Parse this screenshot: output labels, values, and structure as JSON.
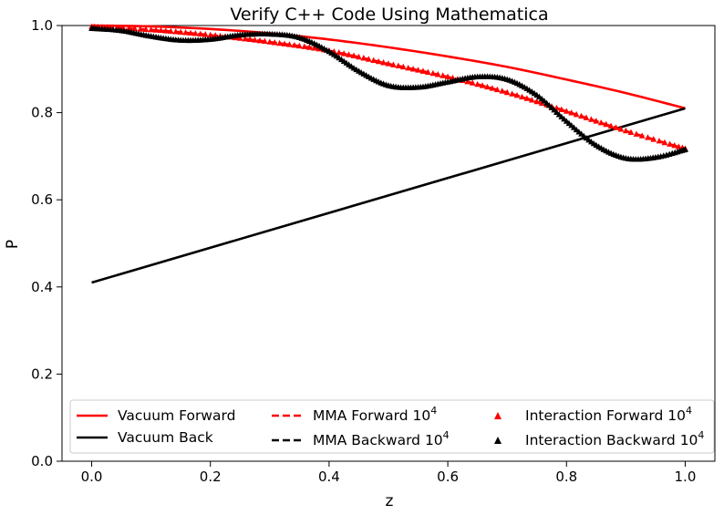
{
  "chart_data": {
    "type": "line",
    "title": "Verify C++ Code Using Mathematica",
    "xlabel": "z",
    "ylabel": "P",
    "xlim": [
      -0.05,
      1.05
    ],
    "ylim": [
      0.0,
      1.0
    ],
    "xticks": [
      0.0,
      0.2,
      0.4,
      0.6,
      0.8,
      1.0
    ],
    "xtick_labels": [
      "0.0",
      "0.2",
      "0.4",
      "0.6",
      "0.8",
      "1.0"
    ],
    "yticks": [
      0.0,
      0.2,
      0.4,
      0.6,
      0.8,
      1.0
    ],
    "ytick_labels": [
      "0.0",
      "0.2",
      "0.4",
      "0.6",
      "0.8",
      "1.0"
    ],
    "grid": false,
    "legend_placement": "bottom",
    "legend_columns": 3,
    "series": [
      {
        "name": "Vacuum Forward",
        "color": "#ff0000",
        "style": "solid",
        "x": [
          0.0,
          0.1,
          0.2,
          0.3,
          0.4,
          0.5,
          0.6,
          0.7,
          0.8,
          0.9,
          1.0
        ],
        "y": [
          1.0,
          0.998,
          0.992,
          0.982,
          0.968,
          0.95,
          0.929,
          0.905,
          0.876,
          0.845,
          0.81
        ]
      },
      {
        "name": "Vacuum Back",
        "color": "#000000",
        "style": "solid",
        "x": [
          0.0,
          1.0
        ],
        "y": [
          0.41,
          0.81
        ]
      },
      {
        "name": "MMA Forward 10^4",
        "label_main": "MMA Forward 10",
        "label_exp": "4",
        "color": "#ff0000",
        "style": "dashed",
        "x": [
          0.0,
          0.1,
          0.2,
          0.3,
          0.4,
          0.5,
          0.6,
          0.7,
          0.8,
          0.9,
          1.0
        ],
        "y": [
          0.997,
          0.99,
          0.978,
          0.962,
          0.942,
          0.912,
          0.882,
          0.846,
          0.803,
          0.758,
          0.717
        ]
      },
      {
        "name": "MMA Backward 10^4",
        "label_main": "MMA Backward 10",
        "label_exp": "4",
        "color": "#000000",
        "style": "dashed",
        "x": [
          0.0,
          0.05,
          0.1,
          0.15,
          0.2,
          0.25,
          0.3,
          0.35,
          0.4,
          0.45,
          0.5,
          0.55,
          0.6,
          0.65,
          0.7,
          0.75,
          0.8,
          0.85,
          0.9,
          0.95,
          1.0
        ],
        "y": [
          0.993,
          0.988,
          0.975,
          0.966,
          0.968,
          0.978,
          0.98,
          0.972,
          0.94,
          0.895,
          0.862,
          0.858,
          0.87,
          0.882,
          0.876,
          0.84,
          0.78,
          0.725,
          0.695,
          0.697,
          0.715
        ]
      },
      {
        "name": "Interaction Forward 10^4",
        "label_main": "Interaction Forward 10",
        "label_exp": "4",
        "color": "#ff0000",
        "style": "triangle-markers",
        "x": [
          0.0,
          0.1,
          0.2,
          0.3,
          0.4,
          0.5,
          0.6,
          0.7,
          0.8,
          0.9,
          1.0
        ],
        "y": [
          0.997,
          0.99,
          0.978,
          0.962,
          0.942,
          0.912,
          0.882,
          0.846,
          0.803,
          0.758,
          0.717
        ]
      },
      {
        "name": "Interaction Backward 10^4",
        "label_main": "Interaction Backward 10",
        "label_exp": "4",
        "color": "#000000",
        "style": "triangle-markers",
        "x": [
          0.0,
          0.05,
          0.1,
          0.15,
          0.2,
          0.25,
          0.3,
          0.35,
          0.4,
          0.45,
          0.5,
          0.55,
          0.6,
          0.65,
          0.7,
          0.75,
          0.8,
          0.85,
          0.9,
          0.95,
          1.0
        ],
        "y": [
          0.993,
          0.988,
          0.975,
          0.966,
          0.968,
          0.978,
          0.98,
          0.972,
          0.94,
          0.895,
          0.862,
          0.858,
          0.87,
          0.882,
          0.876,
          0.84,
          0.78,
          0.725,
          0.695,
          0.697,
          0.715
        ]
      }
    ]
  }
}
